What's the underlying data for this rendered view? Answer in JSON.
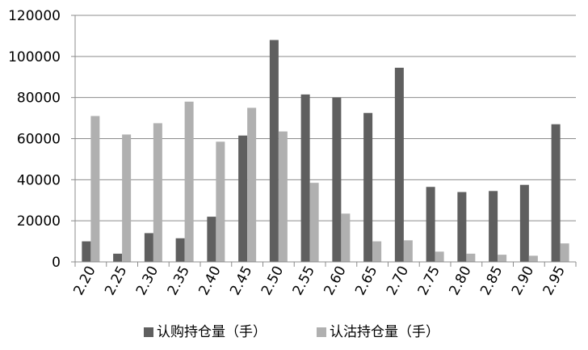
{
  "chart_data": {
    "type": "bar",
    "categories": [
      "2.20",
      "2.25",
      "2.30",
      "2.35",
      "2.40",
      "2.45",
      "2.50",
      "2.55",
      "2.60",
      "2.65",
      "2.70",
      "2.75",
      "2.80",
      "2.85",
      "2.90",
      "2.95"
    ],
    "series": [
      {
        "name": "认购持仓量（手）",
        "color": "#5f5f5f",
        "values": [
          10000,
          4000,
          14000,
          11500,
          22000,
          61500,
          108000,
          81500,
          80000,
          72500,
          94500,
          36500,
          34000,
          34500,
          37500,
          67000
        ]
      },
      {
        "name": "认沽持仓量（手）",
        "color": "#b0b0b0",
        "values": [
          71000,
          62000,
          67500,
          78000,
          58500,
          75000,
          63500,
          38500,
          23500,
          10000,
          10500,
          5000,
          4000,
          3500,
          3000,
          9000
        ]
      }
    ],
    "yticks": [
      "0",
      "20000",
      "40000",
      "60000",
      "80000",
      "100000",
      "120000"
    ],
    "ylim": [
      0,
      120000
    ],
    "legend_position": "bottom",
    "grid": true
  }
}
